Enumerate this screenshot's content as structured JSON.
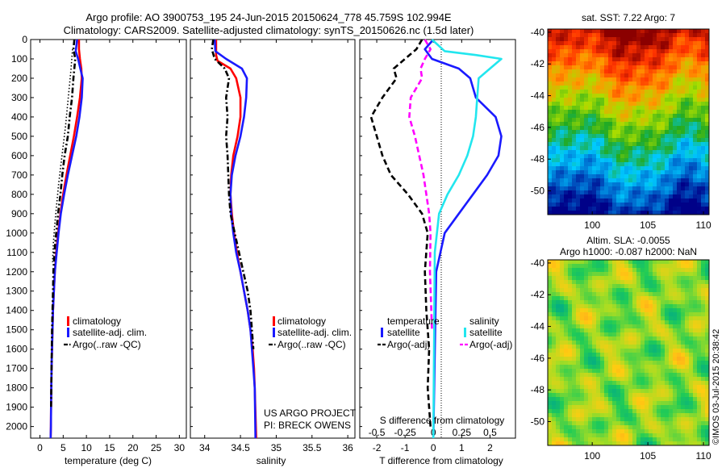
{
  "header": {
    "line1": "Argo profile: AO 3900753_195 24-Jun-2015 20150624_778 45.759S 102.994E",
    "line2": "Climatology: CARS2009. Satellite-adjusted climatology: synTS_20150626.nc (1.5d later)"
  },
  "colors": {
    "climatology": "#ff0000",
    "satellite": "#1a1aff",
    "argo": "#000000",
    "sal_satellite": "#22e6ee",
    "sal_argo": "#ff00ff"
  },
  "chart_data": [
    {
      "type": "line",
      "name": "temperature",
      "xlabel": "temperature (deg C)",
      "xlim": [
        -2,
        31.5
      ],
      "xticks": [
        "0",
        "5",
        "10",
        "15",
        "20",
        "25",
        "30"
      ],
      "ylim": [
        2060,
        0
      ],
      "yticks": [
        "0",
        "100",
        "200",
        "300",
        "400",
        "500",
        "600",
        "700",
        "800",
        "900",
        "1000",
        "1100",
        "1200",
        "1300",
        "1400",
        "1500",
        "1600",
        "1700",
        "1800",
        "1900",
        "2000"
      ],
      "legend": [
        "climatology",
        "satellite-adj. clim.",
        "Argo(..raw -QC)"
      ],
      "series": [
        {
          "name": "climatology",
          "style": "solid",
          "color": "#ff0000",
          "x": [
            8.4,
            8.4,
            8.6,
            8.9,
            9.0,
            8.6,
            8.0,
            7.3,
            6.5,
            5.7,
            5.0,
            4.4,
            3.9,
            3.5,
            3.2,
            3.0,
            2.8,
            2.7,
            2.6,
            2.5,
            2.45,
            2.4,
            2.35,
            2.3
          ],
          "y": [
            0,
            50,
            100,
            150,
            200,
            300,
            400,
            500,
            600,
            700,
            800,
            900,
            1000,
            1100,
            1200,
            1300,
            1400,
            1500,
            1600,
            1700,
            1800,
            1900,
            2000,
            2060
          ]
        },
        {
          "name": "satellite-adj. clim.",
          "style": "solid",
          "color": "#1a1aff",
          "x": [
            8.0,
            7.7,
            8.2,
            8.7,
            9.2,
            9.0,
            8.5,
            7.8,
            6.9,
            6.0,
            5.2,
            4.5,
            4.0,
            3.6,
            3.2,
            3.0,
            2.8,
            2.7,
            2.6,
            2.5,
            2.45,
            2.4,
            2.35,
            2.3
          ],
          "y": [
            0,
            60,
            100,
            150,
            200,
            300,
            400,
            500,
            600,
            700,
            800,
            900,
            1000,
            1100,
            1200,
            1300,
            1400,
            1500,
            1600,
            1700,
            1800,
            1900,
            2000,
            2060
          ]
        },
        {
          "name": "Argo(..raw -QC)",
          "style": "dashdot",
          "color": "#000000",
          "x": [
            7.4,
            7.2,
            7.6,
            7.2,
            6.9,
            6.4,
            6.0,
            5.3,
            4.8,
            4.4,
            3.9,
            3.5,
            3.1,
            2.9,
            2.8,
            2.7,
            2.6,
            2.55,
            2.5,
            2.45,
            2.4
          ],
          "y": [
            0,
            50,
            100,
            200,
            300,
            400,
            500,
            600,
            700,
            800,
            900,
            1000,
            1100,
            1200,
            1300,
            1400,
            1500,
            1600,
            1700,
            1800,
            1900
          ]
        },
        {
          "name": "Argo dotted",
          "style": "dotted",
          "color": "#000000",
          "x": [
            7.0,
            6.7,
            6.3,
            5.9,
            5.5,
            5.0,
            4.5,
            4.0,
            3.6,
            3.2,
            2.9,
            2.7
          ],
          "y": [
            50,
            150,
            250,
            350,
            450,
            550,
            650,
            750,
            850,
            950,
            1050,
            1150
          ]
        }
      ]
    },
    {
      "type": "line",
      "name": "salinity",
      "xlabel": "salinity",
      "xlim": [
        33.8,
        36.1
      ],
      "xticks": [
        "34",
        "34.5",
        "35",
        "35.5",
        "36"
      ],
      "ylim": [
        2060,
        0
      ],
      "legend": [
        "climatology",
        "satellite-adj. clim.",
        "Argo(..raw -QC)"
      ],
      "credit": [
        "US ARGO PROJECT",
        "PI: BRECK OWENS"
      ],
      "series": [
        {
          "name": "climatology",
          "style": "solid",
          "color": "#ff0000",
          "x": [
            34.16,
            34.16,
            34.18,
            34.36,
            34.44,
            34.5,
            34.5,
            34.46,
            34.4,
            34.37,
            34.36,
            34.38,
            34.41,
            34.45,
            34.5,
            34.55,
            34.6,
            34.64,
            34.67,
            34.69,
            34.7,
            34.72
          ],
          "y": [
            0,
            80,
            110,
            150,
            200,
            300,
            400,
            500,
            600,
            700,
            800,
            900,
            1000,
            1100,
            1200,
            1300,
            1400,
            1500,
            1600,
            1700,
            1800,
            2060
          ]
        },
        {
          "name": "satellite-adj. clim.",
          "style": "solid",
          "color": "#1a1aff",
          "x": [
            34.14,
            34.15,
            34.3,
            34.52,
            34.59,
            34.58,
            34.55,
            34.5,
            34.43,
            34.38,
            34.36,
            34.37,
            34.4,
            34.44,
            34.5,
            34.55,
            34.6,
            34.64,
            34.66,
            34.68,
            34.7,
            34.71
          ],
          "y": [
            0,
            60,
            100,
            150,
            200,
            300,
            400,
            500,
            600,
            700,
            800,
            900,
            1000,
            1100,
            1200,
            1300,
            1400,
            1500,
            1600,
            1700,
            1800,
            2060
          ]
        },
        {
          "name": "Argo(..raw -QC)",
          "style": "dashdot",
          "color": "#000000",
          "x": [
            34.12,
            34.1,
            34.14,
            34.28,
            34.34,
            34.3,
            34.32,
            34.3,
            34.32,
            34.33,
            34.34,
            34.36,
            34.42,
            34.48,
            34.54,
            34.6,
            34.64,
            34.66,
            34.68
          ],
          "y": [
            0,
            50,
            100,
            150,
            200,
            300,
            400,
            500,
            600,
            700,
            800,
            900,
            1000,
            1100,
            1200,
            1300,
            1400,
            1500,
            1600
          ]
        }
      ]
    },
    {
      "type": "line",
      "name": "difference",
      "xlabel": "T difference from climatology",
      "xlabel_top": "S difference from climatology",
      "xlim": [
        -2.6,
        2.9
      ],
      "xticks": [
        "-2",
        "-1",
        "0",
        "1",
        "2"
      ],
      "xticks_top": [
        "-0.5",
        "-0.25",
        "0",
        "0.25",
        "0.5"
      ],
      "ylim": [
        2060,
        0
      ],
      "legend_titles": [
        "temperature",
        "salinity"
      ],
      "legend": [
        "satellite",
        "Argo(-adj)",
        "satellite",
        "Argo(-adj)"
      ],
      "series": [
        {
          "name": "T satellite",
          "style": "solid",
          "color": "#1a1aff",
          "x": [
            0,
            -0.3,
            -0.05,
            0.9,
            1.3,
            1.5,
            2.2,
            2.4,
            2.3,
            1.9,
            1.4,
            0.9,
            0.4,
            0.1,
            0
          ],
          "y": [
            0,
            50,
            100,
            150,
            200,
            300,
            400,
            500,
            600,
            700,
            800,
            900,
            1000,
            1200,
            2060
          ]
        },
        {
          "name": "S satellite",
          "style": "solid",
          "color": "#22e6ee",
          "x": [
            -0.05,
            0.4,
            1.5,
            2.4,
            2.0,
            1.6,
            1.55,
            1.5,
            1.4,
            1.2,
            0.9,
            0.5,
            0.2,
            0.05,
            0
          ],
          "y": [
            0,
            60,
            80,
            100,
            150,
            200,
            300,
            400,
            500,
            600,
            700,
            800,
            900,
            1100,
            2060
          ]
        },
        {
          "name": "T Argo(-adj)",
          "style": "dashed",
          "color": "#000000",
          "x": [
            -0.4,
            -0.6,
            -1.0,
            -1.4,
            -1.3,
            -1.8,
            -2.2,
            -2.0,
            -1.8,
            -1.5,
            -0.9,
            -0.4,
            -0.2,
            -0.3,
            -0.25,
            -0.15,
            -0.2,
            -0.1
          ],
          "y": [
            0,
            50,
            100,
            150,
            200,
            300,
            400,
            500,
            600,
            700,
            800,
            900,
            1000,
            1200,
            1400,
            1600,
            1800,
            2000
          ]
        },
        {
          "name": "S Argo(-adj)",
          "style": "dashed",
          "color": "#ff00ff",
          "x": [
            -0.3,
            -0.1,
            -0.3,
            -0.45,
            -0.4,
            -0.8,
            -0.85,
            -0.65,
            -0.5,
            -0.35,
            -0.25,
            -0.15,
            -0.1,
            -0.12,
            -0.05
          ],
          "y": [
            0,
            50,
            100,
            150,
            200,
            300,
            400,
            500,
            600,
            700,
            800,
            900,
            1000,
            1200,
            1500
          ]
        }
      ]
    },
    {
      "type": "heatmap",
      "name": "sst",
      "title": "sat. SST: 7.22 Argo: 7",
      "xlim": [
        96,
        110.5
      ],
      "ylim": [
        -51.5,
        -39.8
      ],
      "xticks": [
        "100",
        "105",
        "110"
      ],
      "yticks": [
        "-40",
        "-42",
        "-44",
        "-46",
        "-48",
        "-50"
      ],
      "palette": [
        "#8b0000",
        "#ff3300",
        "#ff9900",
        "#aadd00",
        "#22aa22",
        "#00ccff",
        "#0066cc",
        "#000088"
      ]
    },
    {
      "type": "heatmap",
      "name": "sla",
      "title_line1": "Altim. SLA: -0.0055",
      "title_line2": "Argo h1000: -0.087 h2000: NaN",
      "xlim": [
        96,
        110.5
      ],
      "ylim": [
        -51.5,
        -39.8
      ],
      "xticks": [
        "100",
        "105",
        "110"
      ],
      "yticks": [
        "-40",
        "-42",
        "-44",
        "-46",
        "-48",
        "-50"
      ],
      "palette": [
        "#00aa88",
        "#22cc55",
        "#aadd22",
        "#ffcc11",
        "#ff9922"
      ]
    }
  ],
  "watermark": "©IMOS 03-Jul-2015 20:38:42"
}
